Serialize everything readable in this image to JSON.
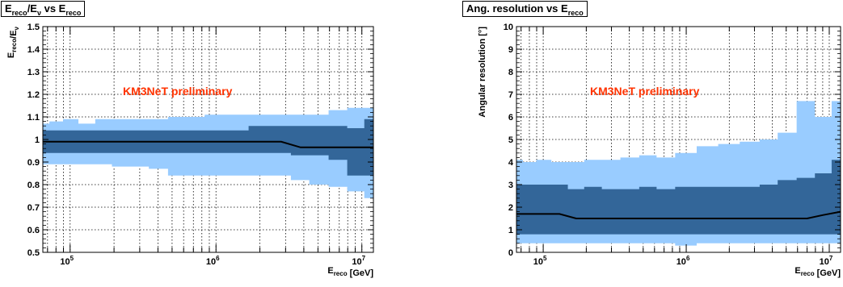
{
  "chart_data": [
    {
      "type": "area",
      "title": "E_reco/E_ν vs E_reco",
      "title_parts": {
        "a": "E",
        "a_sub": "reco",
        "b": "/E",
        "b_sub": "ν",
        "c": " vs E",
        "c_sub": "reco"
      },
      "xlabel": "E_reco [GeV]",
      "xlabel_parts": {
        "a": "E",
        "a_sub": "reco",
        "b": " [GeV]"
      },
      "ylabel": "E_reco/E_ν",
      "ylabel_parts": {
        "a": "E",
        "a_sub": "reco",
        "b": "/E",
        "b_sub": "ν"
      },
      "x_scale": "log",
      "xlim": [
        65000,
        12000000
      ],
      "ylim": [
        0.5,
        1.5
      ],
      "y_ticks": [
        "0.5",
        "0.6",
        "0.7",
        "0.8",
        "0.9",
        "1",
        "1.1",
        "1.2",
        "1.3",
        "1.4",
        "1.5"
      ],
      "x_tick_labels": [
        {
          "base": "10",
          "exp": "5"
        },
        {
          "base": "10",
          "exp": "6"
        },
        {
          "base": "10",
          "exp": "7"
        }
      ],
      "grid": true,
      "annotation": "KM3NeT preliminary",
      "x": [
        65000,
        80000,
        100000,
        130000,
        170000,
        220000,
        300000,
        400000,
        550000,
        700000,
        1000000,
        1400000,
        2000000,
        2800000,
        3800000,
        5000000,
        7000000,
        9000000,
        12000000
      ],
      "median": [
        0.99,
        0.99,
        0.99,
        0.99,
        0.99,
        0.99,
        0.99,
        0.99,
        0.99,
        0.99,
        0.99,
        0.99,
        0.99,
        0.99,
        0.965,
        0.965,
        0.965,
        0.965,
        0.965
      ],
      "inner_band": {
        "lower": [
          0.94,
          0.94,
          0.94,
          0.94,
          0.94,
          0.94,
          0.94,
          0.94,
          0.94,
          0.94,
          0.94,
          0.94,
          0.94,
          0.94,
          0.93,
          0.93,
          0.91,
          0.84,
          0.84
        ],
        "upper": [
          1.04,
          1.04,
          1.04,
          1.04,
          1.04,
          1.04,
          1.04,
          1.04,
          1.04,
          1.04,
          1.04,
          1.04,
          1.06,
          1.06,
          1.06,
          1.06,
          1.06,
          1.05,
          1.09
        ]
      },
      "outer_band": {
        "lower": [
          0.89,
          0.89,
          0.89,
          0.89,
          0.89,
          0.88,
          0.88,
          0.87,
          0.84,
          0.84,
          0.84,
          0.84,
          0.84,
          0.84,
          0.82,
          0.8,
          0.79,
          0.77,
          0.74
        ],
        "upper": [
          1.07,
          1.08,
          1.09,
          1.07,
          1.09,
          1.09,
          1.09,
          1.09,
          1.1,
          1.1,
          1.11,
          1.11,
          1.11,
          1.11,
          1.11,
          1.11,
          1.13,
          1.14,
          1.14
        ]
      },
      "colors": {
        "inner": "#336699",
        "outer": "#99ccff",
        "median": "#000000",
        "annotation": "#ff3300"
      }
    },
    {
      "type": "area",
      "title": "Ang. resolution vs E_reco",
      "title_parts": {
        "a": "Ang. resolution vs E",
        "a_sub": "reco"
      },
      "xlabel": "E_reco [GeV]",
      "xlabel_parts": {
        "a": "E",
        "a_sub": "reco",
        "b": " [GeV]"
      },
      "ylabel": "Angular resolution [°]",
      "ylabel_parts": {
        "a": "Angular resolution [°]"
      },
      "x_scale": "log",
      "xlim": [
        65000,
        12000000
      ],
      "ylim": [
        0,
        10
      ],
      "y_ticks": [
        "0",
        "1",
        "2",
        "3",
        "4",
        "5",
        "6",
        "7",
        "8",
        "9",
        "10"
      ],
      "x_tick_labels": [
        {
          "base": "10",
          "exp": "5"
        },
        {
          "base": "10",
          "exp": "6"
        },
        {
          "base": "10",
          "exp": "7"
        }
      ],
      "grid": true,
      "annotation": "KM3NeT preliminary",
      "x": [
        65000,
        80000,
        100000,
        130000,
        170000,
        220000,
        300000,
        400000,
        550000,
        700000,
        1000000,
        1400000,
        2000000,
        2800000,
        3800000,
        5000000,
        7000000,
        9000000,
        12000000
      ],
      "median": [
        1.7,
        1.7,
        1.7,
        1.7,
        1.5,
        1.5,
        1.5,
        1.5,
        1.5,
        1.5,
        1.5,
        1.5,
        1.5,
        1.5,
        1.5,
        1.5,
        1.5,
        1.65,
        1.8
      ],
      "inner_band": {
        "lower": [
          0.8,
          0.8,
          0.8,
          0.8,
          0.8,
          0.8,
          0.8,
          0.8,
          0.8,
          0.8,
          0.8,
          0.8,
          0.8,
          0.8,
          0.8,
          0.8,
          0.8,
          0.8,
          0.8
        ],
        "upper": [
          3.0,
          3.0,
          3.0,
          3.0,
          2.8,
          2.9,
          2.8,
          2.8,
          2.9,
          2.8,
          2.9,
          2.9,
          2.9,
          2.9,
          3.0,
          3.2,
          3.3,
          3.5,
          4.1
        ]
      },
      "outer_band": {
        "lower": [
          0.4,
          0.4,
          0.4,
          0.4,
          0.4,
          0.4,
          0.4,
          0.4,
          0.4,
          0.4,
          0.3,
          0.4,
          0.4,
          0.4,
          0.4,
          0.4,
          0.4,
          0.4,
          0.4
        ],
        "upper": [
          4.1,
          4.0,
          4.1,
          4.0,
          4.0,
          4.1,
          4.1,
          4.2,
          4.3,
          4.2,
          4.4,
          4.7,
          4.8,
          4.9,
          5.0,
          5.3,
          6.7,
          6.0,
          6.7
        ]
      },
      "colors": {
        "inner": "#336699",
        "outer": "#99ccff",
        "median": "#000000",
        "annotation": "#ff3300"
      }
    }
  ]
}
